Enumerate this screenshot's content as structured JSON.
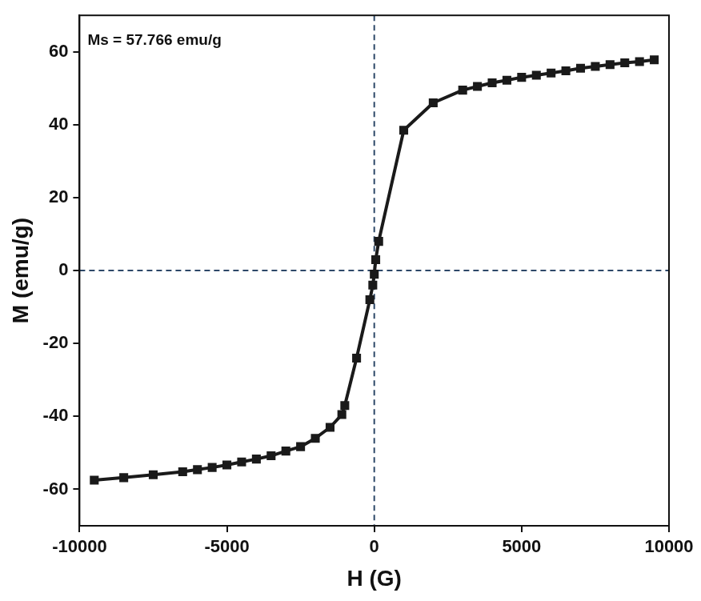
{
  "chart_data": {
    "type": "line",
    "annotation": "Ms = 57.766 emu/g",
    "x_label": "H (G)",
    "y_label": "M (emu/g)",
    "x": [
      -9500,
      -8500,
      -7500,
      -6500,
      -6000,
      -5500,
      -5000,
      -4500,
      -4000,
      -3500,
      -3000,
      -2500,
      -2000,
      -1500,
      -1100,
      -1000,
      -600,
      -150,
      -50,
      0,
      50,
      150,
      1000,
      2000,
      3000,
      3500,
      4000,
      4500,
      5000,
      5500,
      6000,
      6500,
      7000,
      7500,
      8000,
      8500,
      9000,
      9500
    ],
    "series": [
      {
        "name": "M",
        "color": "#1a1a1a",
        "marker": "square",
        "line_style": "solid",
        "values": [
          -57.5,
          -56.8,
          -56,
          -55.2,
          -54.6,
          -54,
          -53.3,
          -52.5,
          -51.7,
          -50.8,
          -49.5,
          -48.3,
          -46,
          -43,
          -39.5,
          -37,
          -24,
          -8,
          -4,
          -1,
          3,
          8,
          38.5,
          46,
          49.5,
          50.5,
          51.5,
          52.2,
          53,
          53.6,
          54.2,
          54.8,
          55.5,
          56,
          56.5,
          57,
          57.3,
          57.8
        ]
      }
    ],
    "xlim": [
      -10000,
      10000
    ],
    "xticks": [
      -10000,
      -5000,
      0,
      5000,
      10000
    ],
    "ylim": [
      -70,
      70
    ],
    "yticks": [
      -60,
      -40,
      -20,
      0,
      20,
      40,
      60
    ],
    "hlines": [
      0
    ],
    "vlines": [
      0
    ],
    "grid": false
  }
}
